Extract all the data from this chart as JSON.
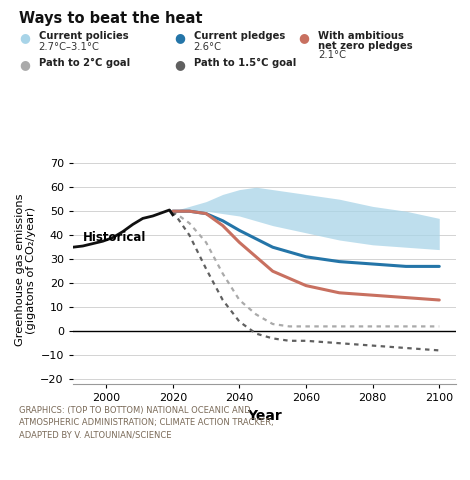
{
  "title": "Ways to beat the heat",
  "ylabel": "Greenhouse gas emissions\n(gigatons of CO₂/year)",
  "xlabel": "Year",
  "xlim": [
    1990,
    2105
  ],
  "ylim": [
    -22,
    73
  ],
  "yticks": [
    -20,
    -10,
    0,
    10,
    20,
    30,
    40,
    50,
    60,
    70
  ],
  "xticks": [
    2000,
    2020,
    2040,
    2060,
    2080,
    2100
  ],
  "footnote": "GRAPHICS: (TOP TO BOTTOM) NATIONAL OCEANIC AND\nATMOSPHERIC ADMINISTRATION; CLIMATE ACTION TRACKER,\nADAPTED BY V. ALTOUNIAN/SCIENCE",
  "historical_years": [
    1990,
    1993,
    1996,
    1999,
    2002,
    2005,
    2008,
    2011,
    2014,
    2017,
    2019,
    2020
  ],
  "historical_values": [
    35.0,
    35.5,
    36.5,
    37.5,
    39.0,
    41.5,
    44.5,
    47.0,
    48.0,
    49.5,
    50.5,
    48.5
  ],
  "current_policies_upper_years": [
    2020,
    2025,
    2030,
    2035,
    2040,
    2045,
    2050,
    2060,
    2070,
    2080,
    2090,
    2100
  ],
  "current_policies_upper": [
    50,
    52,
    54,
    57,
    59,
    60,
    59,
    57,
    55,
    52,
    50,
    47
  ],
  "current_policies_lower": [
    50,
    50,
    50,
    49,
    48,
    46,
    44,
    41,
    38,
    36,
    35,
    34
  ],
  "current_pledges_years": [
    2020,
    2025,
    2030,
    2035,
    2040,
    2050,
    2060,
    2070,
    2080,
    2090,
    2100
  ],
  "current_pledges_values": [
    50,
    50,
    49,
    46,
    42,
    35,
    31,
    29,
    28,
    27,
    27
  ],
  "net_zero_years": [
    2020,
    2025,
    2030,
    2035,
    2040,
    2050,
    2060,
    2070,
    2080,
    2090,
    2100
  ],
  "net_zero_values": [
    50,
    50,
    49,
    44,
    37,
    25,
    19,
    16,
    15,
    14,
    13
  ],
  "path2c_years": [
    2020,
    2025,
    2030,
    2035,
    2040,
    2045,
    2050,
    2055,
    2060,
    2070,
    2080,
    2090,
    2100
  ],
  "path2c_values": [
    50,
    45,
    37,
    24,
    13,
    7,
    3,
    2,
    2,
    2,
    2,
    2,
    2
  ],
  "path15c_years": [
    2020,
    2025,
    2030,
    2035,
    2040,
    2045,
    2050,
    2055,
    2060,
    2070,
    2080,
    2090,
    2100
  ],
  "path15c_values": [
    50,
    40,
    26,
    13,
    4,
    -1,
    -3,
    -4,
    -4,
    -5,
    -6,
    -7,
    -8
  ],
  "fill_color": "#A8D4E8",
  "fill_alpha": 0.75,
  "pledges_color": "#2475A8",
  "netzero_color": "#C87060",
  "path2c_color": "#AAAAAA",
  "path15c_color": "#606060",
  "historical_color": "#111111"
}
